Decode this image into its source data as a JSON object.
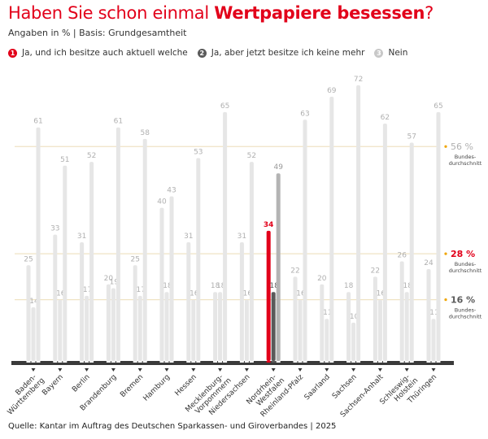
{
  "title": {
    "prefix": "Haben Sie schon einmal ",
    "bold": "Wertpapiere besessen",
    "suffix": "?"
  },
  "subtitle": "Angaben in % | Basis: Grundgesamtheit",
  "legend": [
    {
      "number": "1",
      "label": "Ja, und ich besitze auch aktuell welche",
      "color": "#e2001a"
    },
    {
      "number": "2",
      "label": "Ja, aber jetzt besitze ich keine mehr",
      "color": "#5a5a5a"
    },
    {
      "number": "3",
      "label": "Nein",
      "color": "#c8c8c8"
    }
  ],
  "source": "Quelle: Kantar im Auftrag des Deutschen Sparkassen- und Giroverbandes | 2025",
  "colors": {
    "accent": "#e2001a",
    "bar_default": "#e6e6e6",
    "label_default": "#b0b0b0",
    "highlight_series2": "#5a5a5a",
    "highlight_series3": "#b4b4b4",
    "reference_line": "#efe3c4",
    "reference_dot": "#f0a500",
    "axis": "#3a3a3a"
  },
  "chart_data": {
    "type": "bar",
    "title": "Haben Sie schon einmal Wertpapiere besessen?",
    "xlabel": "",
    "ylabel": "Angaben in %",
    "ylim": [
      0,
      75
    ],
    "grid": false,
    "categories": [
      "Baden-Württemberg",
      "Bayern",
      "Berlin",
      "Brandenburg",
      "Bremen",
      "Hamburg",
      "Hessen",
      "Mecklenburg-Vorpommern",
      "Niedersachsen",
      "Nordrhein-Westfalen",
      "Rheinland-Pfalz",
      "Saarland",
      "Sachsen",
      "Sachsen-Anhalt",
      "Schleswig-Holstein",
      "Thüringen"
    ],
    "category_labels": [
      [
        "Baden-",
        "Württemberg"
      ],
      [
        "Bayern"
      ],
      [
        "Berlin"
      ],
      [
        "Brandenburg"
      ],
      [
        "Bremen"
      ],
      [
        "Hamburg"
      ],
      [
        "Hessen"
      ],
      [
        "Mecklenburg-",
        "Vorpommern"
      ],
      [
        "Niedersachsen"
      ],
      [
        "Nordrhein-",
        "Westfalen"
      ],
      [
        "Rheinland-Pfalz"
      ],
      [
        "Saarland"
      ],
      [
        "Sachsen"
      ],
      [
        "Sachsen-Anhalt"
      ],
      [
        "Schleswig-",
        "Holstein"
      ],
      [
        "Thüringen"
      ]
    ],
    "highlighted_category": "Nordrhein-Westfalen",
    "series": [
      {
        "name": "Ja, und ich besitze auch aktuell welche",
        "values": [
          25,
          33,
          31,
          20,
          25,
          40,
          31,
          18,
          31,
          34,
          22,
          20,
          18,
          22,
          26,
          24
        ]
      },
      {
        "name": "Ja, aber jetzt besitze ich keine mehr",
        "values": [
          14,
          16,
          17,
          19,
          17,
          18,
          16,
          18,
          16,
          18,
          16,
          11,
          10,
          16,
          18,
          11
        ]
      },
      {
        "name": "Nein",
        "values": [
          61,
          51,
          52,
          61,
          58,
          43,
          53,
          65,
          52,
          49,
          63,
          69,
          72,
          62,
          57,
          65
        ]
      }
    ],
    "reference_lines": [
      {
        "value": 56,
        "label": "56 %",
        "caption": [
          "Bundes-",
          "durchschnitt"
        ],
        "color": "#b0b0b0"
      },
      {
        "value": 28,
        "label": "28 %",
        "caption": [
          "Bundes-",
          "durchschnitt"
        ],
        "color": "#e2001a"
      },
      {
        "value": 16,
        "label": "16 %",
        "caption": [
          "Bundes-",
          "durchschnitt"
        ],
        "color": "#5a5a5a"
      }
    ]
  }
}
